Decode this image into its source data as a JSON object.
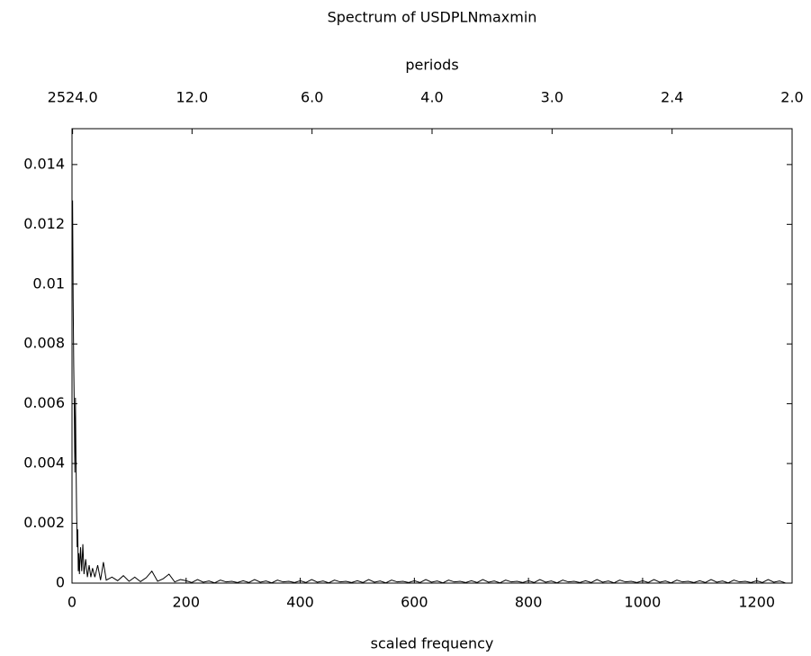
{
  "chart_data": {
    "type": "line",
    "title": "Spectrum of USDPLNmaxmin",
    "xlabel": "scaled frequency",
    "x2label": "periods",
    "xlim": [
      0,
      1262
    ],
    "xticks": [
      0,
      200,
      400,
      600,
      800,
      1000,
      1200
    ],
    "x2ticks": [
      {
        "value": 1,
        "label": "2524.0"
      },
      {
        "value": 210.333,
        "label": "12.0"
      },
      {
        "value": 420.667,
        "label": "6.0"
      },
      {
        "value": 631,
        "label": "4.0"
      },
      {
        "value": 841.333,
        "label": "3.0"
      },
      {
        "value": 1051.667,
        "label": "2.4"
      },
      {
        "value": 1262,
        "label": "2.0"
      }
    ],
    "ylim": [
      0,
      0.0152
    ],
    "yticks": [
      0,
      0.002,
      0.004,
      0.006,
      0.008,
      0.01,
      0.012,
      0.014
    ],
    "color": "#000000",
    "x": [
      1,
      2,
      3,
      4,
      5,
      6,
      7,
      8,
      9,
      10,
      11,
      12,
      13,
      15,
      17,
      19,
      21,
      24,
      27,
      30,
      33,
      36,
      40,
      45,
      50,
      55,
      60,
      70,
      80,
      90,
      100,
      110,
      120,
      130,
      140,
      150,
      160,
      170,
      180,
      190,
      200,
      210,
      220,
      230,
      240,
      250,
      260,
      270,
      280,
      290,
      300,
      310,
      320,
      330,
      340,
      350,
      360,
      370,
      380,
      390,
      400,
      410,
      420,
      430,
      440,
      450,
      460,
      470,
      480,
      490,
      500,
      510,
      520,
      530,
      540,
      550,
      560,
      570,
      580,
      590,
      600,
      610,
      620,
      630,
      640,
      650,
      660,
      670,
      680,
      690,
      700,
      710,
      720,
      730,
      740,
      750,
      760,
      770,
      780,
      790,
      800,
      810,
      820,
      830,
      840,
      850,
      860,
      870,
      880,
      890,
      900,
      910,
      920,
      930,
      940,
      950,
      960,
      970,
      980,
      990,
      1000,
      1010,
      1020,
      1030,
      1040,
      1050,
      1060,
      1070,
      1080,
      1090,
      1100,
      1110,
      1120,
      1130,
      1140,
      1150,
      1160,
      1170,
      1180,
      1190,
      1200,
      1210,
      1220,
      1230,
      1240,
      1250
    ],
    "values": [
      0.0128,
      0.0095,
      0.0073,
      0.0058,
      0.0037,
      0.0062,
      0.0041,
      0.0025,
      0.0012,
      0.0018,
      0.0004,
      0.001,
      0.0003,
      0.0012,
      0.0004,
      0.0013,
      0.0003,
      0.0008,
      0.0002,
      0.0006,
      0.0002,
      0.0005,
      0.0002,
      0.0006,
      0.0001,
      0.0007,
      0.0001,
      0.0002,
      8e-05,
      0.00025,
      6e-05,
      0.0002,
      5e-05,
      0.00018,
      0.0004,
      6e-05,
      0.00015,
      0.0003,
      4e-05,
      0.00012,
      8e-05,
      2e-05,
      0.00012,
      3e-05,
      7e-05,
      1e-05,
      0.0001,
      4e-05,
      6e-05,
      2e-05,
      8e-05,
      2e-05,
      0.00012,
      3e-05,
      7e-05,
      1e-05,
      0.0001,
      4e-05,
      6e-05,
      2e-05,
      8e-05,
      2e-05,
      0.00012,
      3e-05,
      7e-05,
      1e-05,
      0.0001,
      4e-05,
      6e-05,
      2e-05,
      8e-05,
      2e-05,
      0.00012,
      3e-05,
      7e-05,
      1e-05,
      0.0001,
      4e-05,
      6e-05,
      2e-05,
      8e-05,
      2e-05,
      0.00012,
      3e-05,
      7e-05,
      1e-05,
      0.0001,
      4e-05,
      6e-05,
      2e-05,
      8e-05,
      2e-05,
      0.00012,
      3e-05,
      7e-05,
      1e-05,
      0.0001,
      4e-05,
      6e-05,
      2e-05,
      8e-05,
      2e-05,
      0.00012,
      3e-05,
      7e-05,
      1e-05,
      0.0001,
      4e-05,
      6e-05,
      2e-05,
      8e-05,
      2e-05,
      0.00012,
      3e-05,
      7e-05,
      1e-05,
      0.0001,
      4e-05,
      6e-05,
      2e-05,
      8e-05,
      2e-05,
      0.00012,
      3e-05,
      7e-05,
      1e-05,
      0.0001,
      4e-05,
      6e-05,
      2e-05,
      8e-05,
      2e-05,
      0.00012,
      3e-05,
      7e-05,
      1e-05,
      0.0001,
      4e-05,
      6e-05,
      2e-05,
      8e-05,
      2e-05,
      0.00012,
      3e-05,
      7e-05,
      1e-05
    ]
  }
}
